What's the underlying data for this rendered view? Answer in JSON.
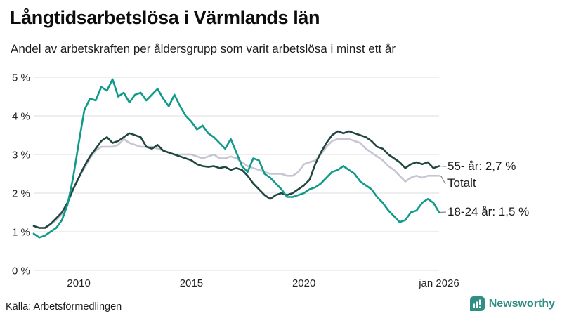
{
  "header": {
    "title": "Långtidsarbetslösa i Värmlands län",
    "subtitle": "Andel av arbetskraften per åldersgrupp som varit arbetslösa i minst ett år"
  },
  "chart_data": {
    "type": "line",
    "title": "Långtidsarbetslösa i Värmlands län",
    "subtitle": "Andel av arbetskraften per åldersgrupp som varit arbetslösa i minst ett år",
    "unit": "% av arbetskraften",
    "x_start": 2008.0,
    "x_step": 0.25,
    "x_end": 2026.0,
    "ylim": [
      0,
      5.2
    ],
    "grid": true,
    "legend_position": "right-end-labels",
    "x_ticks": [
      {
        "value": 2010,
        "label": "2010"
      },
      {
        "value": 2015,
        "label": "2015"
      },
      {
        "value": 2020,
        "label": "2020"
      },
      {
        "value": 2026,
        "label": "jan 2026"
      }
    ],
    "y_ticks": [
      {
        "value": 0,
        "label": "0 %"
      },
      {
        "value": 1,
        "label": "1 %"
      },
      {
        "value": 2,
        "label": "2 %"
      },
      {
        "value": 3,
        "label": "3 %"
      },
      {
        "value": 4,
        "label": "4 %"
      },
      {
        "value": 5,
        "label": "5 %"
      }
    ],
    "series": [
      {
        "id": "55-ar",
        "name": "55- år",
        "end_label": "55- år: 2,7 %",
        "end_value": 2.7,
        "color": "#1F463F",
        "values": [
          1.15,
          1.1,
          1.1,
          1.2,
          1.35,
          1.5,
          1.75,
          2.1,
          2.4,
          2.7,
          2.95,
          3.15,
          3.35,
          3.45,
          3.3,
          3.35,
          3.45,
          3.55,
          3.5,
          3.45,
          3.2,
          3.15,
          3.25,
          3.1,
          3.05,
          3.0,
          2.95,
          2.9,
          2.85,
          2.75,
          2.7,
          2.68,
          2.7,
          2.65,
          2.68,
          2.6,
          2.65,
          2.6,
          2.45,
          2.25,
          2.1,
          1.95,
          1.85,
          1.95,
          2.0,
          1.95,
          2.0,
          2.1,
          2.2,
          2.35,
          2.75,
          3.05,
          3.3,
          3.5,
          3.6,
          3.55,
          3.6,
          3.55,
          3.5,
          3.45,
          3.35,
          3.2,
          3.15,
          3.0,
          2.9,
          2.8,
          2.65,
          2.75,
          2.8,
          2.75,
          2.8,
          2.65,
          2.7
        ]
      },
      {
        "id": "totalt",
        "name": "Totalt",
        "end_label": "Totalt",
        "end_value": 2.45,
        "color": "#C7C5D3",
        "values": [
          1.15,
          1.1,
          1.1,
          1.2,
          1.3,
          1.45,
          1.75,
          2.1,
          2.4,
          2.65,
          2.9,
          3.1,
          3.2,
          3.2,
          3.2,
          3.25,
          3.4,
          3.3,
          3.25,
          3.2,
          3.2,
          3.2,
          3.15,
          3.1,
          3.05,
          3.0,
          3.0,
          3.0,
          3.0,
          2.95,
          2.9,
          2.95,
          3.0,
          2.9,
          2.9,
          2.95,
          2.9,
          2.8,
          2.7,
          2.65,
          2.6,
          2.55,
          2.5,
          2.5,
          2.5,
          2.45,
          2.45,
          2.55,
          2.75,
          2.8,
          2.85,
          3.0,
          3.2,
          3.35,
          3.4,
          3.4,
          3.4,
          3.35,
          3.3,
          3.15,
          3.05,
          2.95,
          2.85,
          2.7,
          2.6,
          2.45,
          2.3,
          2.4,
          2.45,
          2.4,
          2.45,
          2.45,
          2.45
        ]
      },
      {
        "id": "18-24-ar",
        "name": "18-24 år",
        "end_label": "18-24 år: 1,5 %",
        "end_value": 1.5,
        "color": "#0F9A89",
        "values": [
          0.95,
          0.85,
          0.9,
          1.0,
          1.1,
          1.3,
          1.7,
          2.4,
          3.3,
          4.15,
          4.45,
          4.4,
          4.75,
          4.65,
          4.95,
          4.5,
          4.6,
          4.35,
          4.55,
          4.6,
          4.4,
          4.55,
          4.7,
          4.45,
          4.25,
          4.55,
          4.25,
          4.0,
          3.85,
          3.65,
          3.75,
          3.55,
          3.45,
          3.3,
          3.15,
          3.4,
          3.05,
          2.7,
          2.55,
          2.9,
          2.85,
          2.5,
          2.4,
          2.25,
          2.1,
          1.9,
          1.9,
          1.95,
          2.0,
          2.1,
          2.15,
          2.25,
          2.4,
          2.55,
          2.6,
          2.7,
          2.6,
          2.5,
          2.3,
          2.2,
          2.1,
          1.9,
          1.75,
          1.55,
          1.4,
          1.25,
          1.3,
          1.5,
          1.55,
          1.75,
          1.85,
          1.75,
          1.5
        ]
      }
    ]
  },
  "footer": {
    "source": "Källa: Arbetsförmedlingen",
    "brand": "Newsworthy"
  },
  "theme": {
    "grid_color": "#E4E4E8",
    "axis_text_color": "#222222",
    "brand_color": "#2F8F85",
    "connector_color": "#888888"
  }
}
